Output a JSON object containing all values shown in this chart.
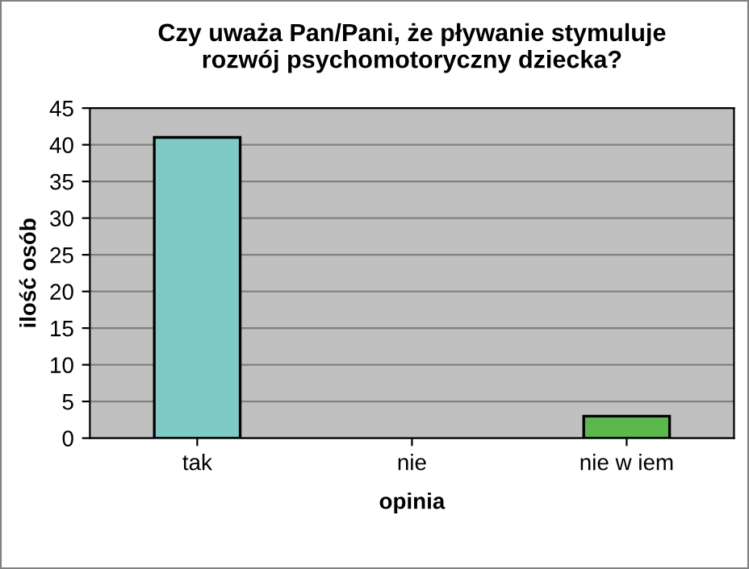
{
  "chart_data": {
    "type": "bar",
    "title": "Czy uważa Pan/Pani, że pływanie stymuluje\nrozwój psychomotoryczny dziecka?",
    "xlabel": "opinia",
    "ylabel": "ilość osób",
    "categories": [
      "tak",
      "nie",
      "nie w iem"
    ],
    "values": [
      41,
      0,
      3
    ],
    "colors": [
      "#80cac6",
      "#80cac6",
      "#5cb84c"
    ],
    "ylim": [
      0,
      45
    ],
    "yticks": [
      0,
      5,
      10,
      15,
      20,
      25,
      30,
      35,
      40,
      45
    ],
    "grid": "y"
  }
}
